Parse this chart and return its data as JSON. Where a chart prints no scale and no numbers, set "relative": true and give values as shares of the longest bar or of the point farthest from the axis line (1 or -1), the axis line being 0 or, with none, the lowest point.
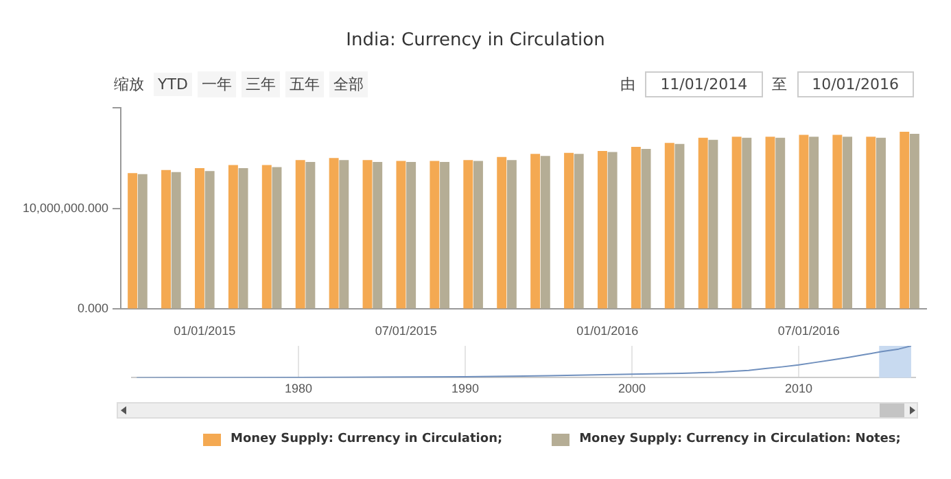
{
  "chart_data": [
    {
      "type": "bar",
      "title": "India: Currency in Circulation",
      "categories": [
        null,
        null,
        "01/01/2015",
        null,
        null,
        null,
        null,
        null,
        "07/01/2015",
        null,
        null,
        null,
        null,
        null,
        "01/01/2016",
        null,
        null,
        null,
        null,
        null,
        "07/01/2016",
        null,
        null,
        null
      ],
      "series": [
        {
          "name": "Money Supply: Currency in Circulation;",
          "color": "#f4a952",
          "values": [
            13500000,
            13800000,
            14000000,
            14300000,
            14300000,
            14800000,
            15000000,
            14800000,
            14700000,
            14700000,
            14800000,
            15100000,
            15400000,
            15500000,
            15700000,
            16100000,
            16500000,
            17000000,
            17100000,
            17100000,
            17300000,
            17300000,
            17100000,
            17600000
          ]
        },
        {
          "name": "Money Supply: Currency in Circulation: Notes;",
          "color": "#b5ad95",
          "values": [
            13400000,
            13600000,
            13700000,
            14000000,
            14100000,
            14600000,
            14800000,
            14600000,
            14600000,
            14600000,
            14700000,
            14800000,
            15200000,
            15400000,
            15600000,
            15900000,
            16400000,
            16800000,
            17000000,
            17000000,
            17100000,
            17100000,
            17000000,
            17400000
          ]
        }
      ],
      "ylim": [
        0,
        20000000
      ],
      "yticks": [
        {
          "value": 0,
          "label": "0.000"
        },
        {
          "value": 10000000,
          "label": "10,000,000.000"
        },
        {
          "value": 20000000,
          "label": null
        }
      ],
      "grid": false,
      "legend": "bottom",
      "annotations": [
        "缩放",
        "YTD",
        "一年",
        "三年",
        "五年",
        "全部",
        "由",
        "11/01/2014",
        "至",
        "10/01/2016"
      ]
    },
    {
      "type": "line",
      "relative": true,
      "x": [
        1970.3,
        1975,
        1980,
        1985,
        1990,
        1995,
        2000,
        2003,
        2005,
        2007,
        2008,
        2009,
        2010,
        2011,
        2012,
        2013,
        2014,
        2015,
        2016,
        2016.75
      ],
      "series": [
        {
          "color": "#6f8fbd",
          "values": [
            0,
            0.005,
            0.01,
            0.02,
            0.03,
            0.06,
            0.11,
            0.14,
            0.17,
            0.23,
            0.29,
            0.34,
            0.4,
            0.48,
            0.56,
            0.64,
            0.73,
            0.82,
            0.9,
            1
          ]
        }
      ],
      "xlim": [
        1970,
        2017
      ],
      "xticks": [
        1980,
        1990,
        2000,
        2010
      ],
      "grid": "x",
      "bands": [
        {
          "axis": "x",
          "from": 2014.83,
          "to": 2016.75,
          "color": "#c8daf0"
        }
      ]
    }
  ]
}
